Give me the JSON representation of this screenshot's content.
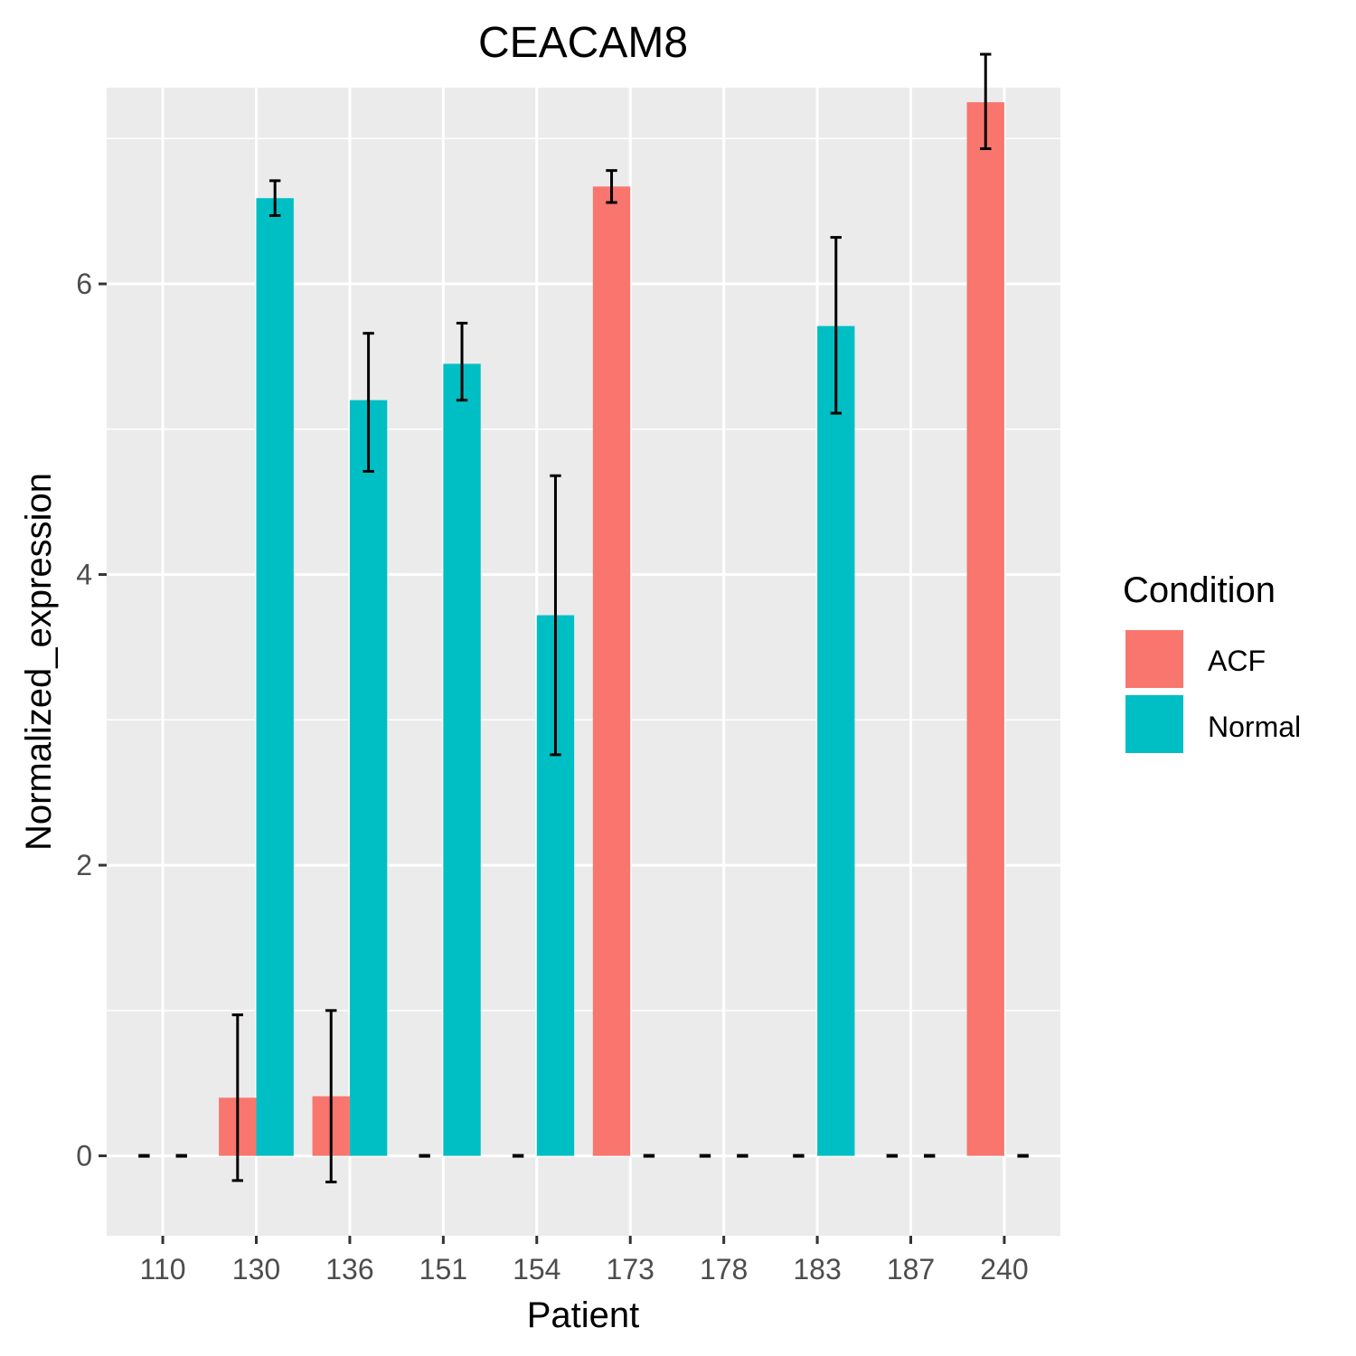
{
  "chart_data": {
    "type": "bar",
    "title": "CEACAM8",
    "xlabel": "Patient",
    "ylabel": "Normalized_expression",
    "categories": [
      "110",
      "130",
      "136",
      "151",
      "154",
      "173",
      "178",
      "183",
      "187",
      "240"
    ],
    "ylim": [
      -0.55,
      7.35
    ],
    "yticks": [
      0,
      2,
      4,
      6
    ],
    "grid": true,
    "legend": {
      "title": "Condition",
      "placement": "right",
      "entries": [
        "ACF",
        "Normal"
      ]
    },
    "colors": {
      "ACF": "#F8766D",
      "Normal": "#00BFC4",
      "panel": "#EBEBEB",
      "grid": "#FFFFFF"
    },
    "series": [
      {
        "name": "ACF",
        "values": [
          0,
          0.4,
          0.41,
          0,
          0,
          6.67,
          0,
          0,
          0,
          7.25
        ],
        "error_low": [
          0,
          -0.17,
          -0.18,
          0,
          0,
          6.56,
          0,
          0,
          0,
          6.93
        ],
        "error_high": [
          0,
          0.97,
          1.0,
          0,
          0,
          6.78,
          0,
          0,
          0,
          7.58
        ]
      },
      {
        "name": "Normal",
        "values": [
          0,
          6.59,
          5.2,
          5.45,
          3.72,
          0,
          0,
          5.71,
          0,
          0
        ],
        "error_low": [
          0,
          6.47,
          4.71,
          5.2,
          2.76,
          0,
          0,
          5.11,
          0,
          0
        ],
        "error_high": [
          0,
          6.71,
          5.66,
          5.73,
          4.68,
          0,
          0,
          6.32,
          0,
          0
        ]
      }
    ]
  }
}
